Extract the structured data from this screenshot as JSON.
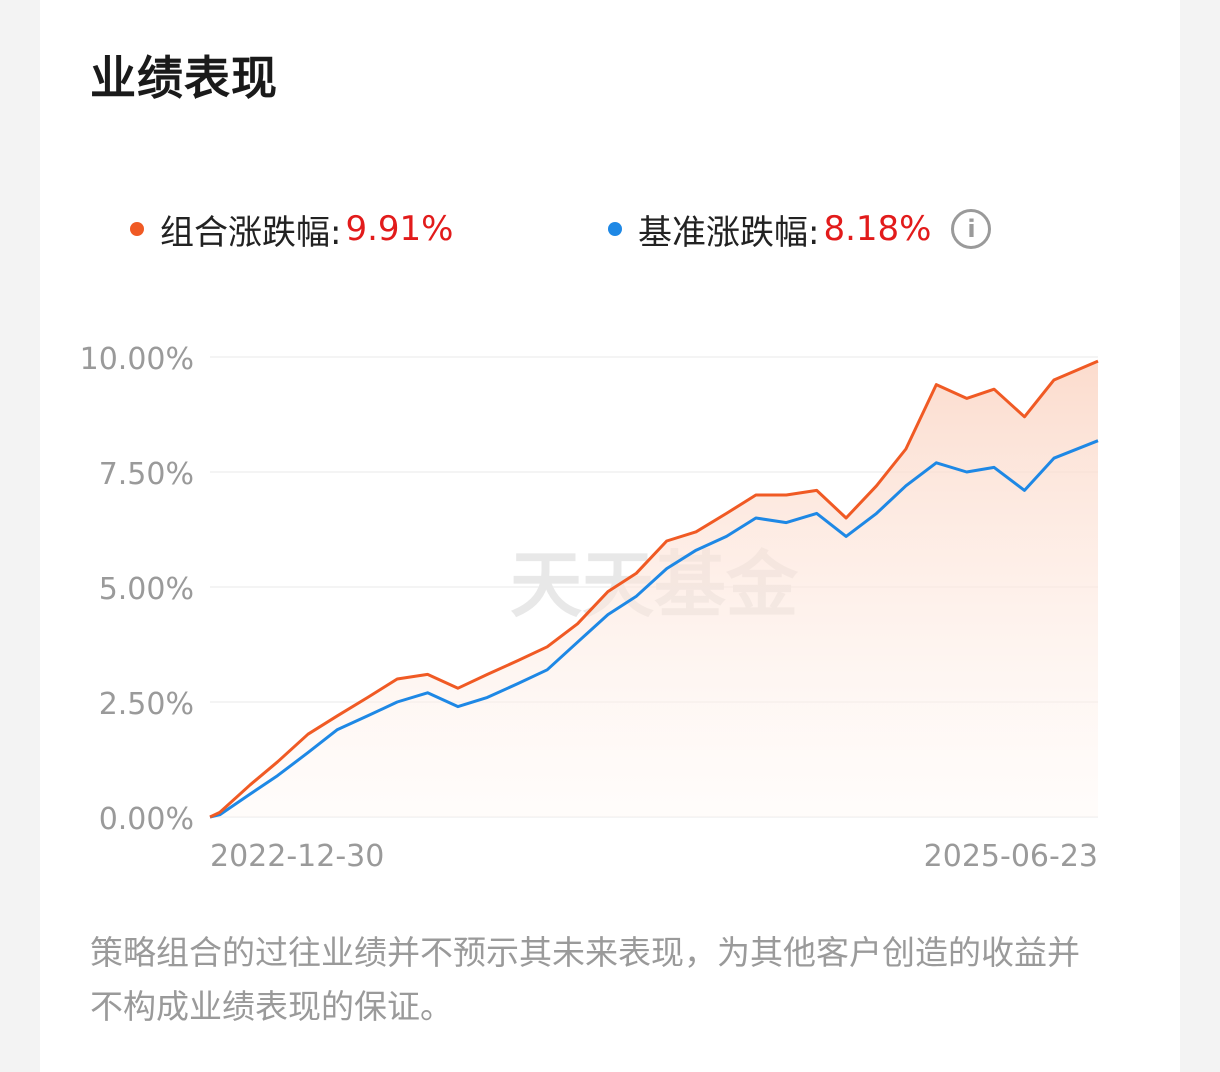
{
  "title": "业绩表现",
  "legend": {
    "portfolio": {
      "label": "组合涨跌幅:",
      "value": "9.91%",
      "color": "#f05a24"
    },
    "benchmark": {
      "label": "基准涨跌幅:",
      "value": "8.18%",
      "color": "#1e88e5"
    }
  },
  "info_icon": "info-icon",
  "watermark": "天天基金",
  "chart_data": {
    "type": "line",
    "x_ticks": [
      "2022-12-30",
      "2025-06-23"
    ],
    "y_ticks": [
      "0.00%",
      "2.50%",
      "5.00%",
      "7.50%",
      "10.00%"
    ],
    "ylim": [
      0,
      10
    ],
    "grid": true,
    "x": [
      "2022-12-30",
      "2023-01-09",
      "2023-02-09",
      "2023-03-09",
      "2023-04-09",
      "2023-05-09",
      "2023-06-09",
      "2023-07-09",
      "2023-08-09",
      "2023-09-09",
      "2023-10-09",
      "2023-11-09",
      "2023-12-09",
      "2024-01-09",
      "2024-02-09",
      "2024-03-09",
      "2024-04-09",
      "2024-05-09",
      "2024-06-09",
      "2024-07-09",
      "2024-08-09",
      "2024-09-09",
      "2024-10-09",
      "2024-11-09",
      "2024-12-09",
      "2025-01-09",
      "2025-02-09",
      "2025-03-09",
      "2025-04-09",
      "2025-05-09",
      "2025-06-23"
    ],
    "series": [
      {
        "name": "组合涨跌幅",
        "color": "#f05a24",
        "values": [
          0.0,
          0.1,
          0.7,
          1.2,
          1.8,
          2.2,
          2.6,
          3.0,
          3.1,
          2.8,
          3.1,
          3.4,
          3.7,
          4.2,
          4.9,
          5.3,
          6.0,
          6.2,
          6.6,
          7.0,
          7.0,
          7.1,
          6.5,
          7.2,
          8.0,
          9.4,
          9.1,
          9.3,
          8.7,
          9.5,
          9.91
        ]
      },
      {
        "name": "基准涨跌幅",
        "color": "#1e88e5",
        "values": [
          0.0,
          0.05,
          0.5,
          0.9,
          1.4,
          1.9,
          2.2,
          2.5,
          2.7,
          2.4,
          2.6,
          2.9,
          3.2,
          3.8,
          4.4,
          4.8,
          5.4,
          5.8,
          6.1,
          6.5,
          6.4,
          6.6,
          6.1,
          6.6,
          7.2,
          7.7,
          7.5,
          7.6,
          7.1,
          7.8,
          8.18
        ]
      }
    ]
  },
  "disclaimer": "策略组合的过往业绩并不预示其未来表现，为其他客户创造的收益并不构成业绩表现的保证。"
}
